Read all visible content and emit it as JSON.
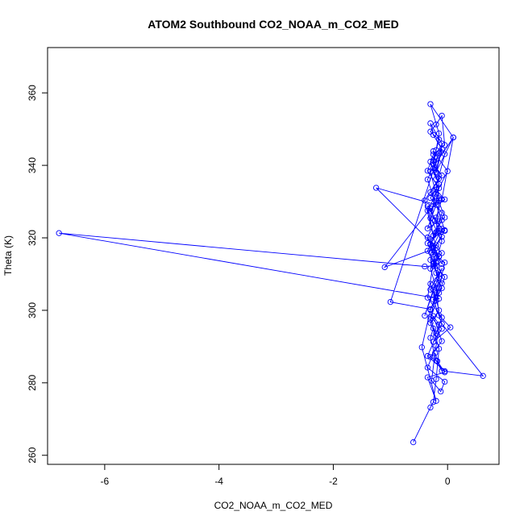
{
  "chart_data": {
    "type": "scatter",
    "title": "ATOM2 Southbound CO2_NOAA_m_CO2_MED",
    "xlabel": "CO2_NOAA_m_CO2_MED",
    "ylabel": "Theta (K)",
    "xlim": [
      -7.0,
      0.9
    ],
    "ylim": [
      257.5,
      372.5
    ],
    "xticks": [
      -6,
      -4,
      -2,
      0
    ],
    "yticks": [
      260,
      280,
      300,
      320,
      340,
      360
    ],
    "xtick_labels": [
      "-6",
      "-4",
      "-2",
      "0"
    ],
    "ytick_labels": [
      "260",
      "280",
      "300",
      "320",
      "340",
      "360"
    ],
    "style": "points-and-lines",
    "series_color": "#0000ff",
    "series": [
      {
        "x": [
          -0.6,
          -0.3,
          -0.25,
          -0.2,
          -0.15,
          -0.25,
          -0.3,
          -0.2,
          -0.1,
          -0.22,
          -0.28,
          -0.12,
          -0.05,
          -0.35,
          -0.2,
          -0.15,
          -0.25,
          -0.1,
          -0.3,
          -0.18,
          -0.05,
          -0.35,
          -0.2,
          -0.45,
          -0.3,
          -0.15,
          -0.25,
          -0.1,
          0.62,
          -0.05,
          -0.35,
          -0.2,
          -0.3,
          -0.15,
          -0.25,
          -0.4,
          -0.2,
          -0.1,
          -0.3,
          -0.15,
          -6.8,
          -0.4,
          -0.2,
          -0.3,
          -0.1,
          -0.25,
          -0.35,
          -0.15,
          -0.2,
          -0.3,
          -0.1,
          -0.25,
          -0.15,
          -0.35,
          -0.2,
          -0.1,
          0.1,
          -0.3,
          -0.2,
          -0.05,
          -0.35,
          -0.2,
          -1.25,
          -0.1,
          -0.3,
          -0.2,
          -0.15,
          0.05,
          -0.25,
          -0.1,
          -0.3,
          -0.2,
          -0.15,
          -0.3,
          -0.2,
          -0.05,
          -0.28,
          -0.1,
          -0.22,
          -0.05,
          -0.3,
          -0.15,
          -0.25,
          -0.1,
          -0.3,
          -0.2,
          -0.05,
          -0.35,
          -0.15,
          -1.0,
          -0.3,
          -0.1,
          -0.2,
          -0.25,
          -0.35,
          -0.15,
          -0.3,
          -1.1,
          -0.2,
          -0.4,
          -0.15,
          -0.25,
          0.0,
          -0.35,
          -0.05,
          -0.2,
          -0.3,
          -0.1,
          -0.2,
          -0.15,
          -0.25,
          -0.35,
          -0.1,
          -0.2,
          -0.3,
          -0.15,
          -0.05,
          -0.25,
          -0.35,
          -0.2,
          -0.1,
          -0.3,
          -0.15,
          -0.25,
          -0.2,
          -0.3,
          -0.1,
          -0.2,
          -0.25,
          -0.15,
          -0.3,
          -0.2,
          -0.1,
          -0.05,
          -0.25,
          -0.35,
          -0.15,
          -0.2,
          -0.3,
          -0.1,
          -0.25,
          -0.2,
          -0.15,
          -0.3,
          0.1,
          -0.2,
          -0.1,
          -0.3,
          -0.25,
          -0.05,
          -0.2,
          -0.15,
          -0.3,
          -0.1,
          -0.25,
          -0.2
        ],
        "y": [
          263.6,
          273.2,
          274.7,
          281.0,
          289.4,
          295.0,
          292.4,
          286.1,
          283.3,
          288.2,
          280.6,
          277.6,
          280.3,
          284.2,
          290.2,
          296.1,
          298.4,
          291.5,
          287.1,
          286.0,
          282.9,
          281.5,
          275.0,
          289.8,
          300.1,
          306.2,
          303.0,
          296.3,
          281.9,
          283.2,
          287.4,
          292.9,
          296.5,
          300.0,
          305.7,
          298.5,
          307.4,
          311.6,
          305.7,
          303.2,
          321.3,
          312.1,
          312.3,
          318.3,
          324.9,
          320.6,
          328.7,
          330.4,
          321.6,
          318.1,
          312.8,
          317.4,
          314.9,
          320.1,
          325.6,
          330.6,
          347.7,
          338.3,
          332.1,
          325.6,
          322.6,
          329.1,
          333.8,
          315.8,
          311.5,
          306.2,
          298.6,
          295.3,
          291.3,
          294.9,
          298.2,
          304.2,
          309.9,
          307.3,
          302.7,
          313.2,
          316.0,
          320.3,
          324.8,
          321.9,
          319.6,
          314.8,
          312.2,
          307.5,
          313.9,
          318.0,
          322.1,
          336.1,
          343.4,
          302.3,
          300.3,
          306.1,
          310.3,
          315.4,
          318.5,
          321.9,
          328.1,
          311.9,
          317.2,
          330.3,
          336.4,
          343.9,
          338.4,
          327.5,
          330.6,
          333.3,
          325.4,
          319.1,
          313.5,
          308.9,
          312.9,
          303.5,
          298.0,
          293.6,
          297.5,
          304.8,
          309.2,
          313.3,
          316.4,
          321.3,
          326.9,
          331.0,
          334.8,
          339.2,
          336.2,
          341.0,
          344.5,
          337.9,
          341.4,
          347.1,
          349.3,
          351.3,
          353.7,
          345.6,
          343.0,
          338.5,
          333.7,
          330.2,
          332.6,
          337.2,
          340.3,
          344.2,
          348.8,
          356.9,
          347.7,
          338.2,
          346.0,
          351.6,
          348.4,
          343.1,
          334.0,
          330.9,
          327.3,
          322.5,
          317.8,
          313.1
        ]
      }
    ]
  }
}
